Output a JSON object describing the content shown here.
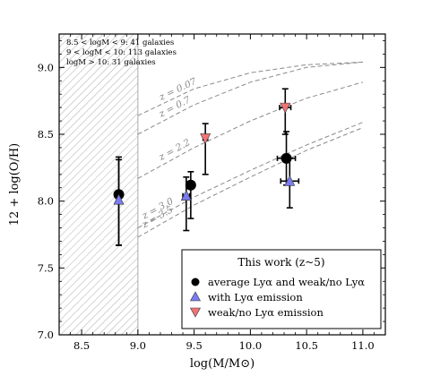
{
  "chart_data": {
    "type": "scatter",
    "xlabel": "log(M/M⊙)",
    "ylabel": "12 + log(O/H)",
    "xlim": [
      8.3,
      11.2
    ],
    "ylim": [
      7.0,
      9.25
    ],
    "xticks": [
      "8.5",
      "9.0",
      "9.5",
      "10.0",
      "10.5",
      "11.0"
    ],
    "xtick_values": [
      8.5,
      9.0,
      9.5,
      10.0,
      10.5,
      11.0
    ],
    "yticks": [
      "7.0",
      "7.5",
      "8.0",
      "8.5",
      "9.0"
    ],
    "ytick_values": [
      7.0,
      7.5,
      8.0,
      8.5,
      9.0
    ],
    "grid": false,
    "shaded_region": {
      "x": [
        8.3,
        9.0
      ],
      "pattern": "diagonal-hatch"
    },
    "sample_notes": [
      "8.5 < logM < 9: 41 galaxies",
      "9 < logM < 10: 113 galaxies",
      "logM > 10: 31 galaxies"
    ],
    "legend": {
      "title": "This work (z~5)",
      "placement": "lower-right",
      "entries": [
        {
          "label": "average Lyα and weak/no Lyα",
          "marker": "circle",
          "color": "#000000"
        },
        {
          "label": "with Lyα emission",
          "marker": "triangle-up",
          "color": "#7b7bf0"
        },
        {
          "label": "weak/no Lyα emission",
          "marker": "triangle-down",
          "color": "#f07474"
        }
      ]
    },
    "relations": [
      {
        "label": "z = 0.07",
        "points": [
          [
            9.0,
            8.64
          ],
          [
            9.5,
            8.84
          ],
          [
            10.0,
            8.96
          ],
          [
            10.5,
            9.02
          ],
          [
            11.0,
            9.04
          ]
        ]
      },
      {
        "label": "z = 0.7",
        "points": [
          [
            9.0,
            8.5
          ],
          [
            9.5,
            8.72
          ],
          [
            10.0,
            8.89
          ],
          [
            10.5,
            9.0
          ],
          [
            11.0,
            9.04
          ]
        ]
      },
      {
        "label": "z = 2.2",
        "points": [
          [
            9.0,
            8.17
          ],
          [
            9.5,
            8.4
          ],
          [
            10.0,
            8.6
          ],
          [
            10.5,
            8.77
          ],
          [
            11.0,
            8.89
          ]
        ]
      },
      {
        "label": "z = 3.0",
        "points": [
          [
            9.0,
            7.8
          ],
          [
            9.5,
            8.03
          ],
          [
            10.0,
            8.23
          ],
          [
            10.5,
            8.42
          ],
          [
            11.0,
            8.59
          ]
        ]
      },
      {
        "label": "z = 3.5",
        "points": [
          [
            9.0,
            7.73
          ],
          [
            9.5,
            7.97
          ],
          [
            10.0,
            8.18
          ],
          [
            10.5,
            8.38
          ],
          [
            11.0,
            8.55
          ]
        ]
      }
    ],
    "series": [
      {
        "marker": "circle",
        "color": "#000000",
        "points": [
          {
            "x": 8.83,
            "y": 8.05,
            "yerr": [
              0.38,
              0.28
            ],
            "xerr": 0.0
          },
          {
            "x": 9.47,
            "y": 8.12,
            "yerr": [
              0.25,
              0.1
            ],
            "xerr": 0.03
          },
          {
            "x": 10.32,
            "y": 8.32,
            "yerr": [
              0.2,
              0.2
            ],
            "xerr": 0.08
          }
        ]
      },
      {
        "marker": "triangle-up",
        "color": "#7b7bf0",
        "points": [
          {
            "x": 8.83,
            "y": 8.01,
            "yerr": [
              0.34,
              0.3
            ],
            "xerr": 0.0
          },
          {
            "x": 9.43,
            "y": 8.04,
            "yerr": [
              0.26,
              0.14
            ],
            "xerr": 0.03
          },
          {
            "x": 10.35,
            "y": 8.15,
            "yerr": [
              0.2,
              0.17
            ],
            "xerr": 0.08
          }
        ]
      },
      {
        "marker": "triangle-down",
        "color": "#f07474",
        "points": [
          {
            "x": 9.6,
            "y": 8.47,
            "yerr": [
              0.27,
              0.11
            ],
            "xerr": 0.02
          },
          {
            "x": 10.31,
            "y": 8.7,
            "yerr": [
              0.2,
              0.14
            ],
            "xerr": 0.05
          }
        ]
      }
    ]
  }
}
